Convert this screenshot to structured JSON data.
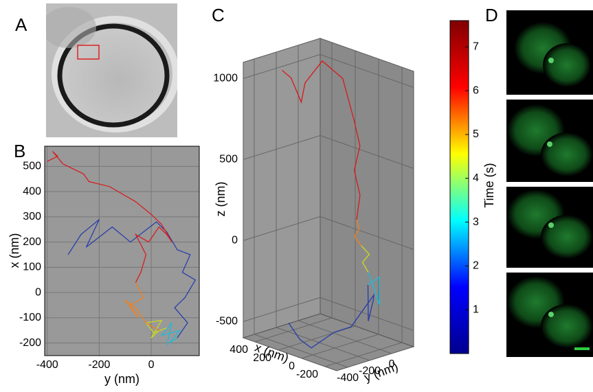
{
  "panel_labels": [
    "A",
    "B",
    "C",
    "D"
  ],
  "chart_data": [
    {
      "type": "line",
      "xlabel": "y (nm)",
      "ylabel": "x (nm)",
      "xlim": [
        -410,
        185
      ],
      "ylim": [
        -250,
        580
      ],
      "xticks": [
        -400,
        -200,
        0
      ],
      "yticks": [
        -200,
        -100,
        0,
        100,
        200,
        300,
        400,
        500
      ],
      "grid": true,
      "series": [
        {
          "color": "#2a3fa8",
          "x": [
            -320,
            -270,
            -200,
            -250,
            -150,
            -80,
            20,
            60,
            100,
            150,
            120,
            170,
            130,
            90,
            140,
            100
          ],
          "values": [
            150,
            230,
            290,
            180,
            260,
            200,
            280,
            240,
            170,
            150,
            80,
            50,
            -20,
            -60,
            -120,
            -180
          ]
        },
        {
          "color": "#22b8d8",
          "x": [
            100,
            70,
            110,
            40,
            80,
            60
          ],
          "values": [
            -180,
            -200,
            -150,
            -170,
            -120,
            -210
          ]
        },
        {
          "color": "#c8d820",
          "x": [
            60,
            10,
            -20,
            40,
            0,
            30
          ],
          "values": [
            -140,
            -160,
            -120,
            -110,
            -180,
            -150
          ]
        },
        {
          "color": "#f08020",
          "x": [
            30,
            -20,
            -60,
            -100,
            -50,
            -80,
            -30,
            -60
          ],
          "values": [
            -150,
            -120,
            -60,
            -30,
            -100,
            -50,
            -20,
            40
          ]
        },
        {
          "color": "#d42020",
          "x": [
            -60,
            -40,
            -20,
            -60,
            -10,
            30,
            60,
            80,
            40,
            0,
            -60,
            -160,
            -240,
            -260,
            -340,
            -380,
            -360,
            -400
          ],
          "values": [
            40,
            80,
            150,
            230,
            200,
            260,
            230,
            200,
            270,
            310,
            360,
            420,
            440,
            470,
            510,
            560,
            540,
            520
          ]
        }
      ]
    },
    {
      "type": "line3d",
      "xlabel": "x (nm)",
      "ylabel": "y (nm)",
      "zlabel": "z (nm)",
      "xlim": [
        -300,
        500
      ],
      "ylim": [
        -500,
        200
      ],
      "zlim": [
        -600,
        1100
      ],
      "xticks": [
        -200,
        0,
        200,
        400
      ],
      "yticks": [
        -400,
        -200,
        0
      ],
      "zticks": [
        -500,
        0,
        500,
        1000
      ],
      "series": [
        {
          "color": "#2a3fa8",
          "x": [
            300,
            250,
            200,
            100,
            0,
            -50,
            -100,
            -50,
            -100,
            -50
          ],
          "y": [
            -300,
            -250,
            -200,
            -100,
            -50,
            0,
            50,
            100,
            0,
            50
          ],
          "z": [
            -500,
            -600,
            -650,
            -550,
            -500,
            -400,
            -300,
            -350,
            -450,
            -250
          ]
        },
        {
          "color": "#22b8d8",
          "x": [
            -50,
            -100,
            -150,
            -100
          ],
          "y": [
            50,
            100,
            50,
            0
          ],
          "z": [
            -250,
            -200,
            -350,
            -150
          ]
        },
        {
          "color": "#c8d820",
          "x": [
            -100,
            -50,
            -80,
            -40
          ],
          "y": [
            0,
            0,
            30,
            0
          ],
          "z": [
            -150,
            -100,
            -50,
            0
          ]
        },
        {
          "color": "#f08020",
          "x": [
            -40,
            0,
            -30,
            0
          ],
          "y": [
            0,
            -20,
            -10,
            0
          ],
          "z": [
            0,
            50,
            100,
            150
          ]
        },
        {
          "color": "#d42020",
          "x": [
            0,
            -10,
            20,
            0,
            30,
            60,
            100,
            200,
            300,
            380,
            420,
            450
          ],
          "y": [
            0,
            20,
            0,
            30,
            10,
            0,
            -20,
            -100,
            -150,
            -100,
            -150,
            -200
          ],
          "z": [
            150,
            300,
            450,
            600,
            750,
            850,
            1000,
            1100,
            950,
            800,
            950,
            1000
          ]
        }
      ]
    },
    {
      "type": "colorbar",
      "label": "Time (s)",
      "lim": [
        0,
        7.6
      ],
      "ticks": [
        1,
        2,
        3,
        4,
        5,
        6,
        7
      ],
      "colors": [
        "#00008f",
        "#0000ff",
        "#00ffff",
        "#ffff00",
        "#ff0000",
        "#800000"
      ]
    }
  ]
}
